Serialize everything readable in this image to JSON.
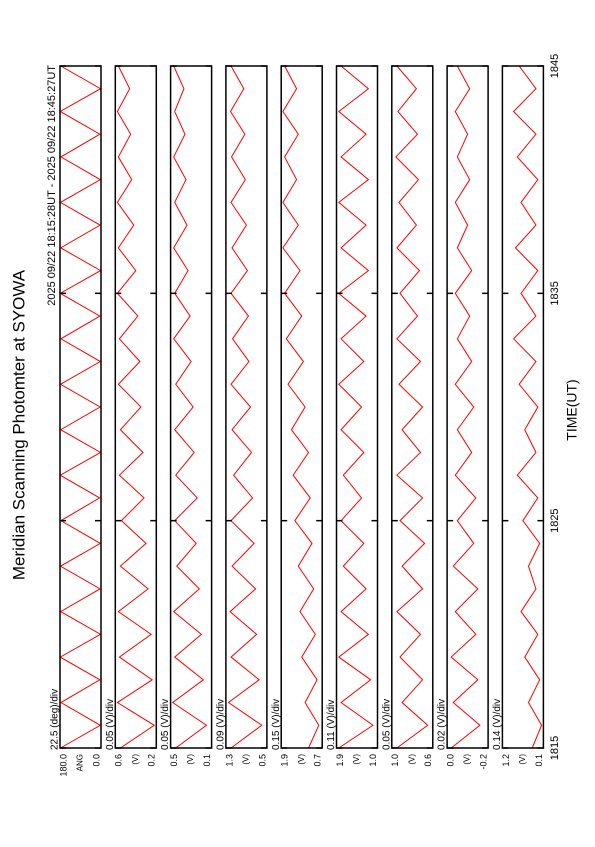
{
  "chart_data": {
    "type": "line",
    "title": "Meridian Scanning Photomter at SYOWA",
    "subtitle": "2025 09/22 18:15:28UT - 2025 09/22 18:45:27UT",
    "xlabel": "TIME(UT)",
    "xlim": [
      1815,
      1845
    ],
    "xticks": [
      1815,
      1825,
      1835,
      1845
    ],
    "x": [
      1815,
      1816,
      1817,
      1818,
      1819,
      1820,
      1821,
      1822,
      1823,
      1824,
      1825,
      1826,
      1827,
      1828,
      1829,
      1830,
      1831,
      1832,
      1833,
      1834,
      1835,
      1836,
      1837,
      1838,
      1839,
      1840,
      1841,
      1842,
      1843,
      1844,
      1845
    ],
    "color": "#ff0000",
    "panels": [
      {
        "scale_label": "22.5 (deg)/div",
        "ylabel": "ANG",
        "ylim": [
          0,
          180
        ],
        "yticks": [
          {
            "value": 180,
            "label": "180.0"
          },
          {
            "value": 0,
            "label": "0.0"
          }
        ],
        "values": [
          178,
          3,
          176,
          5,
          179,
          2,
          177,
          4,
          178,
          3,
          176,
          6,
          179,
          2,
          177,
          4,
          178,
          3,
          176,
          5,
          179,
          2,
          177,
          4,
          178,
          3,
          176,
          5,
          179,
          2,
          177
        ]
      },
      {
        "scale_label": "0.05 (V)/div",
        "ylabel": "(V)",
        "ylim": [
          0.2,
          0.6
        ],
        "yticks": [
          0.6,
          0.2
        ],
        "values": [
          0.55,
          0.22,
          0.58,
          0.24,
          0.56,
          0.25,
          0.57,
          0.28,
          0.55,
          0.3,
          0.54,
          0.32,
          0.56,
          0.33,
          0.55,
          0.35,
          0.57,
          0.36,
          0.56,
          0.38,
          0.58,
          0.4,
          0.57,
          0.42,
          0.58,
          0.44,
          0.57,
          0.45,
          0.58,
          0.46,
          0.57
        ]
      },
      {
        "scale_label": "0.05 (V)/div",
        "ylabel": "(V)",
        "ylim": [
          0.1,
          0.5
        ],
        "yticks": [
          0.5,
          0.1
        ],
        "values": [
          0.45,
          0.15,
          0.48,
          0.18,
          0.46,
          0.2,
          0.47,
          0.22,
          0.44,
          0.25,
          0.46,
          0.24,
          0.45,
          0.27,
          0.46,
          0.28,
          0.45,
          0.3,
          0.47,
          0.31,
          0.46,
          0.33,
          0.47,
          0.34,
          0.46,
          0.35,
          0.47,
          0.36,
          0.46,
          0.37,
          0.47
        ]
      },
      {
        "scale_label": "0.09 (V)/div",
        "ylabel": "(V)",
        "ylim": [
          0.5,
          1.3
        ],
        "yticks": [
          1.3,
          0.5
        ],
        "values": [
          1.2,
          0.6,
          1.25,
          0.65,
          1.2,
          0.7,
          1.22,
          0.72,
          1.18,
          0.75,
          1.2,
          0.78,
          1.15,
          0.8,
          1.18,
          0.82,
          1.2,
          0.85,
          1.17,
          0.86,
          1.2,
          0.88,
          1.18,
          0.9,
          1.2,
          0.92,
          1.19,
          0.93,
          1.21,
          0.95,
          1.2
        ]
      },
      {
        "scale_label": "0.15 (V)/div",
        "ylabel": "(V)",
        "ylim": [
          0.7,
          1.9
        ],
        "yticks": [
          1.9,
          0.7
        ],
        "values": [
          1.1,
          0.8,
          1.2,
          0.85,
          1.3,
          0.9,
          1.35,
          0.95,
          1.4,
          1.0,
          1.5,
          1.05,
          1.55,
          1.1,
          1.6,
          1.2,
          1.7,
          1.25,
          1.75,
          1.3,
          1.8,
          1.35,
          1.85,
          1.4,
          1.85,
          1.45,
          1.8,
          1.4,
          1.85,
          1.45,
          1.8
        ]
      },
      {
        "scale_label": "0.11 (V)/div",
        "ylabel": "(V)",
        "ylim": [
          1.0,
          1.9
        ],
        "yticks": [
          1.9,
          {
            "value": 1.0,
            "label": "1.0"
          }
        ],
        "values": [
          1.85,
          1.1,
          1.8,
          1.15,
          1.85,
          1.2,
          1.8,
          1.25,
          1.75,
          1.3,
          1.8,
          1.35,
          1.75,
          1.3,
          1.8,
          1.35,
          1.85,
          1.3,
          1.8,
          1.25,
          1.85,
          1.2,
          1.8,
          1.25,
          1.85,
          1.2,
          1.8,
          1.25,
          1.85,
          1.2,
          1.8
        ]
      },
      {
        "scale_label": "0.05 (V)/div",
        "ylabel": "(V)",
        "ylim": [
          0.6,
          1.0
        ],
        "yticks": [
          {
            "value": 1.0,
            "label": "1.0"
          },
          0.6
        ],
        "values": [
          0.95,
          0.65,
          0.9,
          0.7,
          0.92,
          0.72,
          0.95,
          0.7,
          0.9,
          0.68,
          0.92,
          0.7,
          0.95,
          0.72,
          0.9,
          0.7,
          0.93,
          0.72,
          0.95,
          0.75,
          0.92,
          0.73,
          0.95,
          0.76,
          0.93,
          0.74,
          0.96,
          0.75,
          0.94,
          0.76,
          0.95
        ]
      },
      {
        "scale_label": "0.02 (V)/div",
        "ylabel": "(V)",
        "ylim": [
          -0.2,
          0.0
        ],
        "yticks": [
          {
            "value": 0.0,
            "label": "0.0"
          },
          -0.2
        ],
        "values": [
          -0.02,
          -0.16,
          -0.03,
          -0.15,
          -0.02,
          -0.14,
          -0.04,
          -0.15,
          -0.03,
          -0.13,
          -0.05,
          -0.14,
          -0.04,
          -0.12,
          -0.05,
          -0.13,
          -0.04,
          -0.12,
          -0.05,
          -0.11,
          -0.04,
          -0.12,
          -0.05,
          -0.1,
          -0.04,
          -0.11,
          -0.05,
          -0.1,
          -0.04,
          -0.11,
          -0.05
        ]
      },
      {
        "scale_label": "0.14 (V)/div",
        "ylabel": "(V)",
        "ylim": [
          0.1,
          1.2
        ],
        "yticks": [
          1.2,
          0.1
        ],
        "values": [
          0.4,
          0.15,
          0.5,
          0.2,
          0.6,
          0.25,
          0.7,
          0.3,
          0.5,
          0.2,
          0.65,
          0.25,
          0.8,
          0.3,
          0.6,
          0.25,
          0.75,
          0.3,
          0.9,
          0.3,
          0.7,
          0.25,
          0.85,
          0.3,
          0.7,
          0.25,
          0.8,
          0.3,
          0.9,
          0.3,
          0.75
        ]
      }
    ]
  }
}
